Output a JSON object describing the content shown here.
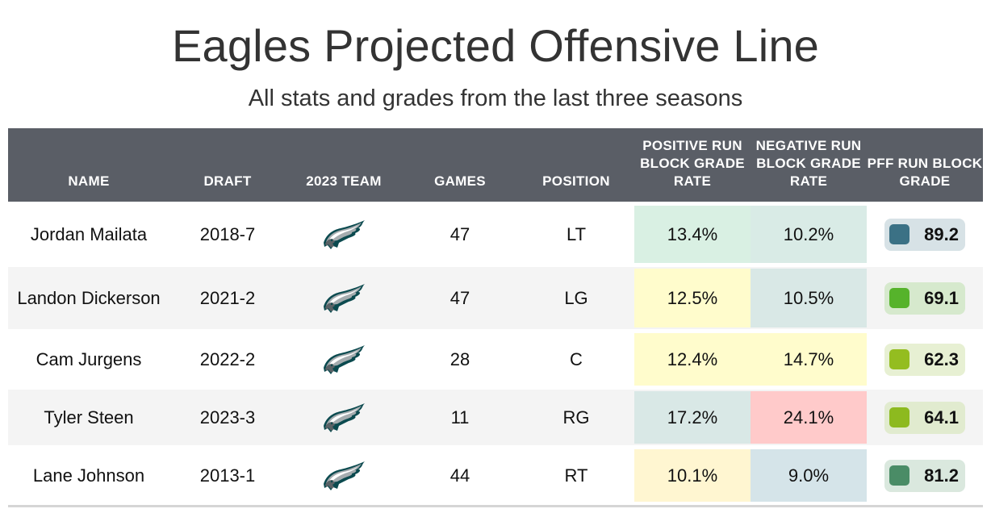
{
  "title": "Eagles Projected Offensive Line",
  "subtitle": "All stats and grades from the last three seasons",
  "columns": {
    "name": "NAME",
    "draft": "DRAFT",
    "team": "2023 TEAM",
    "games": "GAMES",
    "position": "POSITION",
    "pos_rate": "POSITIVE RUN BLOCK GRADE RATE",
    "neg_rate": "NEGATIVE RUN BLOCK GRADE RATE",
    "grade": "PFF RUN BLOCK GRADE"
  },
  "rows": [
    {
      "name": "Jordan Mailata",
      "draft": "2018-7",
      "team_icon": "eagles-logo-icon",
      "games": "47",
      "position": "LT",
      "pos_rate": "13.4%",
      "pos_color": "#d9f0e3",
      "neg_rate": "10.2%",
      "neg_color": "#d9ebe6",
      "grade": "89.2",
      "grade_color": "#3b7185",
      "grade_bg": "#d7e2e6"
    },
    {
      "name": "Landon Dickerson",
      "draft": "2021-2",
      "team_icon": "eagles-logo-icon",
      "games": "47",
      "position": "LG",
      "pos_rate": "12.5%",
      "pos_color": "#fffccc",
      "neg_rate": "10.5%",
      "neg_color": "#d9e8e6",
      "grade": "69.1",
      "grade_color": "#56b32b",
      "grade_bg": "#d6e9cd"
    },
    {
      "name": "Cam Jurgens",
      "draft": "2022-2",
      "team_icon": "eagles-logo-icon",
      "games": "28",
      "position": "C",
      "pos_rate": "12.4%",
      "pos_color": "#fffccc",
      "neg_rate": "14.7%",
      "neg_color": "#fffccc",
      "grade": "62.3",
      "grade_color": "#94bd20",
      "grade_bg": "#e7f0d3"
    },
    {
      "name": "Tyler Steen",
      "draft": "2023-3",
      "team_icon": "eagles-logo-icon",
      "games": "11",
      "position": "RG",
      "pos_rate": "17.2%",
      "pos_color": "#d9e8e6",
      "neg_rate": "24.1%",
      "neg_color": "#ffcaca",
      "grade": "64.1",
      "grade_color": "#8dba1f",
      "grade_bg": "#e1ebcf"
    },
    {
      "name": "Lane Johnson",
      "draft": "2013-1",
      "team_icon": "eagles-logo-icon",
      "games": "44",
      "position": "RT",
      "pos_rate": "10.1%",
      "pos_color": "#fff6d1",
      "neg_rate": "9.0%",
      "neg_color": "#d5e4e9",
      "grade": "81.2",
      "grade_color": "#4a8c66",
      "grade_bg": "#dae8de"
    }
  ]
}
